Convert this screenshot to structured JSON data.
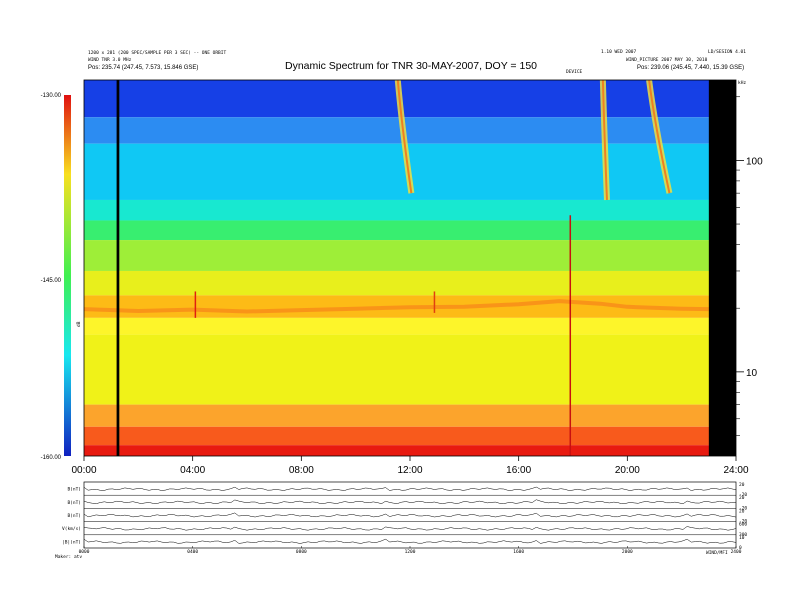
{
  "chart_data": {
    "type": "heatmap",
    "title": "Dynamic Spectrum for TNR 30-MAY-2007, DOY = 150",
    "header_left": [
      "1200 x 281 (200 SPEC/SAMPLE PER 3 SEC)  --  ONE ORBIT",
      "WIND TNR 3.0 MHz",
      "Pos: 235.74 (247.45, 7.573, 15.846 GSE)"
    ],
    "header_right": [
      "1.10 WED 2007",
      "WIND_PICTURE 2007 MAY 30, 2010",
      "Pos: 239.06 (245.45, 7.440, 15.39 GSE)"
    ],
    "corner_label": "LD/SESION 4.01",
    "header_center": "DEVICE",
    "x": {
      "ticks": [
        "00:00",
        "04:00",
        "08:00",
        "12:00",
        "16:00",
        "20:00",
        "24:00"
      ],
      "range_hours": [
        0,
        24
      ]
    },
    "y_right": {
      "label": "kHz",
      "ticks": [
        "100",
        "10"
      ],
      "tick_values": [
        100,
        10
      ],
      "range_khz": [
        4,
        240
      ],
      "scale": "log"
    },
    "colorbar": {
      "label": "dB",
      "ticks": [
        "-130.00",
        "-145.00",
        "-160.00"
      ],
      "range_db": [
        -160,
        -130
      ]
    },
    "bands": [
      {
        "f_lo": 160,
        "f_hi": 240,
        "color": "#1640e6"
      },
      {
        "f_lo": 120,
        "f_hi": 160,
        "color": "#2c8cf2"
      },
      {
        "f_lo": 65,
        "f_hi": 120,
        "color": "#10c8f4"
      },
      {
        "f_lo": 52,
        "f_hi": 65,
        "color": "#18e8d0"
      },
      {
        "f_lo": 42,
        "f_hi": 52,
        "color": "#38ee70"
      },
      {
        "f_lo": 30,
        "f_hi": 42,
        "color": "#9eee38"
      },
      {
        "f_lo": 23,
        "f_hi": 30,
        "color": "#e8ef1c"
      },
      {
        "f_lo": 18,
        "f_hi": 23,
        "color": "#fdbb16"
      },
      {
        "f_lo": 15,
        "f_hi": 18,
        "color": "#fdf52a"
      },
      {
        "f_lo": 7,
        "f_hi": 15,
        "color": "#f0f218"
      },
      {
        "f_lo": 5.5,
        "f_hi": 7,
        "color": "#fca42c"
      },
      {
        "f_lo": 4.5,
        "f_hi": 5.5,
        "color": "#f85a1c"
      },
      {
        "f_lo": 4,
        "f_hi": 4.5,
        "color": "#e81a10"
      }
    ],
    "plasma_line_khz": [
      [
        0,
        19.8
      ],
      [
        2,
        19.4
      ],
      [
        4,
        19.7
      ],
      [
        6,
        19.3
      ],
      [
        8,
        19.6
      ],
      [
        10,
        19.9
      ],
      [
        12,
        20.2
      ],
      [
        14,
        20.3
      ],
      [
        16,
        20.9
      ],
      [
        17.5,
        21.6
      ],
      [
        19,
        21.0
      ],
      [
        20,
        20.3
      ],
      [
        22,
        19.9
      ],
      [
        23,
        19.8
      ]
    ],
    "type_iii_bursts": [
      {
        "start_h": 11.55,
        "drift_h": 0.5,
        "f_hi": 240,
        "f_lo": 70
      },
      {
        "start_h": 19.1,
        "drift_h": 0.15,
        "f_hi": 240,
        "f_lo": 65
      },
      {
        "start_h": 20.8,
        "drift_h": 0.75,
        "f_hi": 240,
        "f_lo": 70
      }
    ],
    "spikes": [
      {
        "h": 17.9,
        "f_hi": 55,
        "f_lo": 4,
        "color": "#c81010"
      },
      {
        "h": 4.1,
        "f_hi": 24,
        "f_lo": 18,
        "color": "#e02010"
      },
      {
        "h": 12.9,
        "f_hi": 24,
        "f_lo": 19,
        "color": "#e04010"
      }
    ],
    "data_gaps": [
      {
        "start_h": 1.2,
        "end_h": 1.3
      },
      {
        "start_h": 23.0,
        "end_h": 24.0
      }
    ],
    "bottom_panels": {
      "left_labels": [
        "B(nT)",
        "B(nT)",
        "B(nT)",
        "V(km/s)",
        "|B|(nT)"
      ],
      "right_ticks": [
        [
          "20",
          "-20"
        ],
        [
          "20",
          "-20"
        ],
        [
          "20",
          "-20"
        ],
        [
          "600",
          "300"
        ],
        [
          "10",
          "0"
        ]
      ],
      "x_ticks": [
        "0000",
        "0400",
        "0800",
        "1200",
        "1600",
        "2000",
        "2400"
      ],
      "footer_left": "Maker: atv",
      "footer_right": "WIND/MFI"
    }
  }
}
